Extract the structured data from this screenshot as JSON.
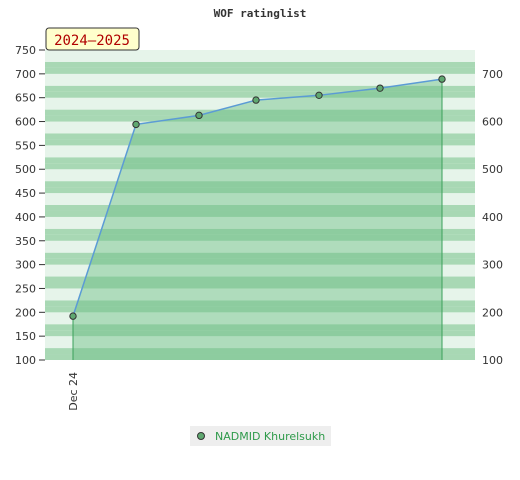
{
  "chart_data": {
    "type": "line",
    "title": "WOF ratinglist",
    "season_label": "2024–2025",
    "categories": [
      "Dec 24",
      "",
      "",
      "",
      "",
      "",
      ""
    ],
    "series": [
      {
        "name": "NADMID Khurelsukh",
        "values": [
          192,
          594,
          613,
          645,
          655,
          670,
          689
        ]
      }
    ],
    "ylim": [
      100,
      750
    ],
    "y_ticks_left": [
      100,
      150,
      200,
      250,
      300,
      350,
      400,
      450,
      500,
      550,
      600,
      650,
      700,
      750
    ],
    "y_ticks_right": [
      100,
      200,
      300,
      400,
      500,
      600,
      700
    ],
    "xlabel": "",
    "ylabel": "",
    "grid": true,
    "legend": "bottom-center",
    "colors": {
      "line": "#5b9bd5",
      "fill": "#6cbf84",
      "marker": "#5fa870",
      "band_dark": "#a8d8b4",
      "band_light": "#e6f4ea",
      "legend_bg": "#eeeeee",
      "legend_text": "#2e9a4a",
      "season_bg": "#ffffcc",
      "season_text": "#b00000"
    }
  }
}
